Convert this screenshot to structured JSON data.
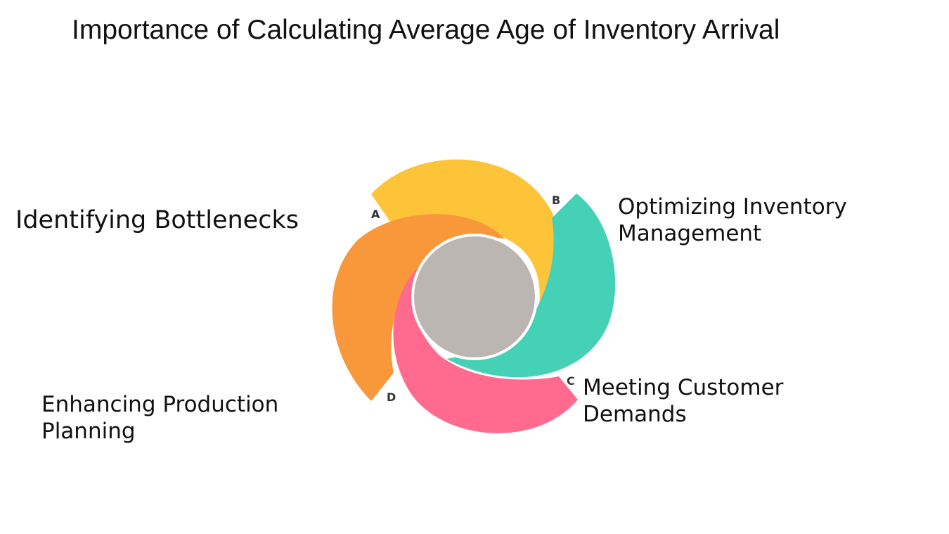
{
  "title": "Importance of Calculating Average Age of Inventory Arrival",
  "center_color": "#bcb6b3",
  "segments": [
    {
      "letter": "A",
      "label_lines": [
        "Identifying Bottlenecks"
      ],
      "color": "#fdc43a"
    },
    {
      "letter": "B",
      "label_lines": [
        "Optimizing Inventory",
        "Management"
      ],
      "color": "#44d1b6"
    },
    {
      "letter": "C",
      "label_lines": [
        "Meeting Customer",
        "Demands"
      ],
      "color": "#ff6a8e"
    },
    {
      "letter": "D",
      "label_lines": [
        "Enhancing Production",
        "Planning"
      ],
      "color": "#f9973b"
    }
  ]
}
